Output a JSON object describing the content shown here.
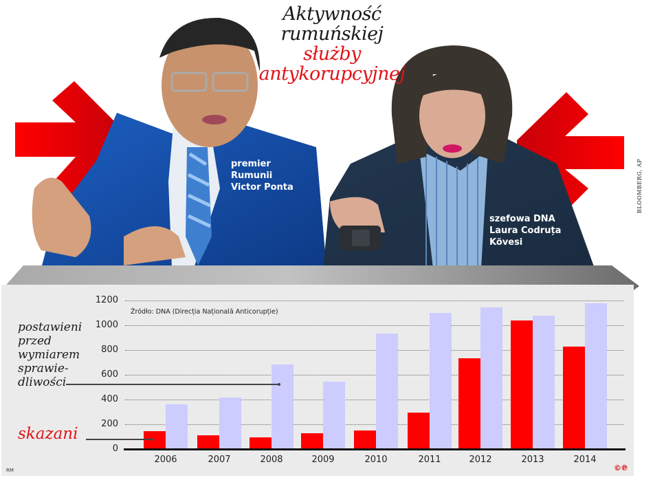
{
  "title": {
    "line1": "Aktywność",
    "line2": "rumuńskiej",
    "line3": "służby",
    "line4": "antykorupcyjnej"
  },
  "people": [
    {
      "caption_lines": [
        "premier",
        "Rumunii",
        "Victor Ponta"
      ]
    },
    {
      "caption_lines": [
        "szefowa DNA",
        "Laura Codruța",
        "Kövesi"
      ]
    }
  ],
  "photo_credit": "BLOOMBERG, AP",
  "source": "Źródło: DNA (Direcția Națională Anticorupție)",
  "legend": {
    "blue_lines": [
      "postawieni",
      "przed",
      "wymiarem",
      "sprawie-",
      "dliwości"
    ],
    "red": "skazani"
  },
  "footer": {
    "author": "RM",
    "copyright": "©℗"
  },
  "colors": {
    "red": "#ff0000",
    "blue": "#ccccff",
    "title_red": "#e01418",
    "panel": "#ebebeb"
  },
  "chart_data": {
    "type": "bar",
    "title": "Aktywność rumuńskiej służby antykorupcyjnej",
    "xlabel": "",
    "ylabel": "",
    "categories": [
      "2006",
      "2007",
      "2008",
      "2009",
      "2010",
      "2011",
      "2012",
      "2013",
      "2014"
    ],
    "series": [
      {
        "name": "skazani",
        "color": "#ff0000",
        "values": [
          144,
          110,
          94,
          127,
          149,
          293,
          735,
          1039,
          829
        ]
      },
      {
        "name": "postawieni przed wymiarem sprawiedliwości",
        "color": "#ccccff",
        "values": [
          359,
          414,
          685,
          547,
          934,
          1100,
          1144,
          1077,
          1177
        ]
      }
    ],
    "yticks": [
      "0",
      "200",
      "400",
      "600",
      "800",
      "1000",
      "1200"
    ],
    "ylim": [
      0,
      1200
    ],
    "grid": true,
    "annotation": "Źródło: DNA (Direcția Națională Anticorupție)"
  }
}
